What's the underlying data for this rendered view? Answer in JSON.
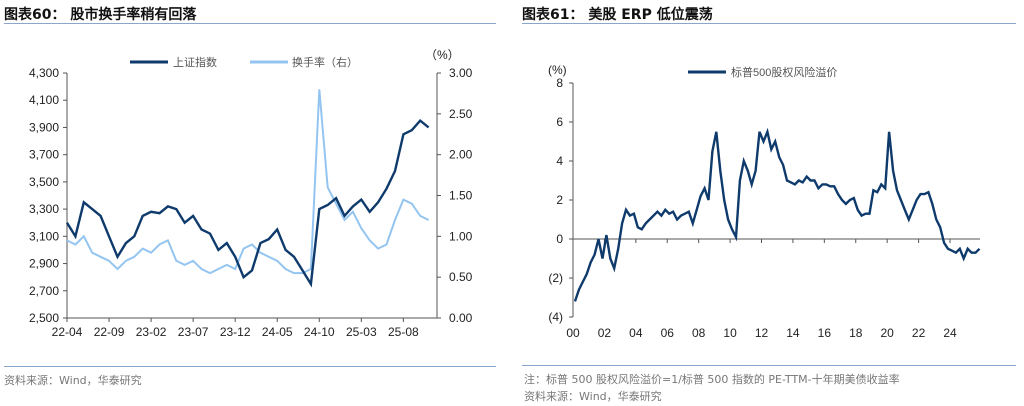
{
  "left": {
    "title": "图表60：  股市换手率稍有回落",
    "source": "资料来源：Wind，华泰研究"
  },
  "right": {
    "title": "图表61：  美股 ERP 低位震荡",
    "note": "注：标普 500 股权风险溢价=1/标普 500 指数的 PE-TTM-十年期美债收益率",
    "source": "资料来源：Wind，华泰研究"
  },
  "colors": {
    "dark": "#0e3a6c",
    "light": "#94c5f0",
    "rule": "#8aa6cc"
  },
  "chart_data": [
    {
      "type": "line",
      "right_axis_unit": "（%）",
      "x_ticks": [
        "22-04",
        "22-09",
        "23-02",
        "23-07",
        "23-12",
        "24-05",
        "24-10",
        "25-03",
        "25-08"
      ],
      "x": [
        "22-04",
        "22-05",
        "22-06",
        "22-07",
        "22-08",
        "22-09",
        "22-10",
        "22-11",
        "22-12",
        "23-01",
        "23-02",
        "23-03",
        "23-04",
        "23-05",
        "23-06",
        "23-07",
        "23-08",
        "23-09",
        "23-10",
        "23-11",
        "23-12",
        "24-01",
        "24-02",
        "24-03",
        "24-04",
        "24-05",
        "24-06",
        "24-07",
        "24-08",
        "24-09",
        "24-10",
        "24-11",
        "24-12",
        "25-01",
        "25-02",
        "25-03",
        "25-04",
        "25-05",
        "25-06",
        "25-07",
        "25-08",
        "25-09",
        "25-10",
        "25-11"
      ],
      "y_left": {
        "ylim": [
          2500,
          4300
        ],
        "ticks": [
          "2,500",
          "2,700",
          "2,900",
          "3,100",
          "3,300",
          "3,500",
          "3,700",
          "3,900",
          "4,100",
          "4,300"
        ]
      },
      "y_right": {
        "ylim": [
          0,
          3
        ],
        "ticks": [
          "0.00",
          "0.50",
          "1.00",
          "1.50",
          "2.00",
          "2.50",
          "3.00"
        ]
      },
      "series": [
        {
          "name": "上证指数",
          "axis": "left",
          "color": "#0e3a6c",
          "values": [
            3200,
            3100,
            3350,
            3300,
            3250,
            3100,
            2950,
            3050,
            3100,
            3250,
            3280,
            3270,
            3320,
            3300,
            3200,
            3250,
            3150,
            3120,
            3000,
            3050,
            2950,
            2800,
            2850,
            3050,
            3080,
            3150,
            3000,
            2950,
            2850,
            2750,
            3300,
            3330,
            3380,
            3250,
            3320,
            3370,
            3280,
            3350,
            3450,
            3580,
            3850,
            3880,
            3950,
            3900
          ]
        },
        {
          "name": "换手率（右）",
          "axis": "right",
          "color": "#94c5f0",
          "values": [
            0.95,
            0.9,
            1.0,
            0.8,
            0.75,
            0.7,
            0.6,
            0.7,
            0.75,
            0.85,
            0.8,
            0.9,
            0.95,
            0.7,
            0.65,
            0.7,
            0.6,
            0.55,
            0.6,
            0.65,
            0.6,
            0.85,
            0.9,
            0.8,
            0.75,
            0.7,
            0.6,
            0.55,
            0.55,
            0.6,
            2.8,
            1.6,
            1.4,
            1.2,
            1.3,
            1.1,
            0.95,
            0.85,
            0.9,
            1.2,
            1.45,
            1.4,
            1.25,
            1.2
          ]
        }
      ]
    },
    {
      "type": "line",
      "y_unit": "(%)",
      "x_ticks": [
        "00",
        "02",
        "04",
        "06",
        "08",
        "10",
        "12",
        "14",
        "16",
        "18",
        "20",
        "22",
        "24"
      ],
      "x_start_year": 2000,
      "ylim": [
        -4,
        8
      ],
      "y_ticks": [
        "(4)",
        "(2)",
        "0",
        "2",
        "4",
        "6",
        "8"
      ],
      "series": [
        {
          "name": "标普500股权风险溢价",
          "color": "#0e3a6c",
          "frequency": "quarterly",
          "values": [
            -3.2,
            -2.6,
            -2.2,
            -1.8,
            -1.2,
            -0.8,
            0.0,
            -1.0,
            0.2,
            -1.0,
            -1.5,
            -0.5,
            0.8,
            1.5,
            1.2,
            1.3,
            0.6,
            0.5,
            0.8,
            1.0,
            1.2,
            1.4,
            1.2,
            1.5,
            1.3,
            1.4,
            1.0,
            1.2,
            1.3,
            1.4,
            0.8,
            1.5,
            2.2,
            2.6,
            2.0,
            4.5,
            5.5,
            3.5,
            2.0,
            1.0,
            0.5,
            0.1,
            3.0,
            4.0,
            3.5,
            2.8,
            3.5,
            5.5,
            5.0,
            5.5,
            4.6,
            5.0,
            4.2,
            3.8,
            3.0,
            2.9,
            2.8,
            3.0,
            2.9,
            3.2,
            3.0,
            3.0,
            2.6,
            2.8,
            2.8,
            2.7,
            2.7,
            2.3,
            2.0,
            1.8,
            2.0,
            2.1,
            1.5,
            1.2,
            1.3,
            1.3,
            2.5,
            2.4,
            2.8,
            2.6,
            5.5,
            3.5,
            2.5,
            2.0,
            1.5,
            1.0,
            1.5,
            2.0,
            2.3,
            2.3,
            2.4,
            1.8,
            1.0,
            0.6,
            -0.2,
            -0.5,
            -0.6,
            -0.7,
            -0.5,
            -1.0,
            -0.5,
            -0.7,
            -0.7,
            -0.5
          ]
        }
      ]
    }
  ]
}
